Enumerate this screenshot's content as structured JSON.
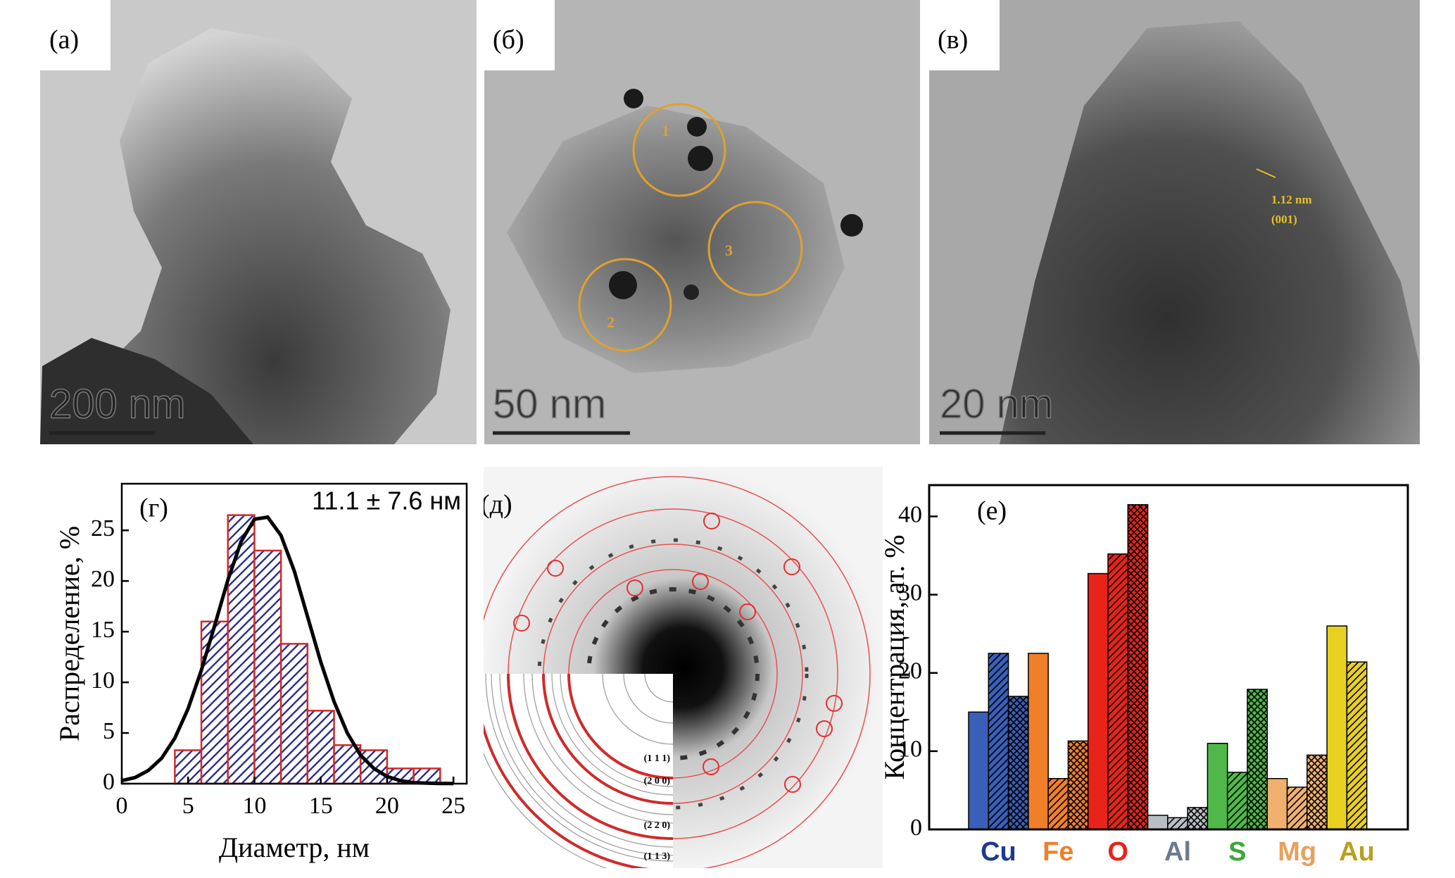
{
  "panels": [
    {
      "label": "(а)",
      "scale_bar": "200 nm"
    },
    {
      "label": "(б)",
      "scale_bar": "50 nm",
      "regions": [
        "1",
        "2",
        "3"
      ]
    },
    {
      "label": "(в)",
      "scale_bar": "20 nm",
      "annotations": [
        "1.12 nm",
        "(001)"
      ]
    },
    {
      "label": "(д)",
      "rings": [
        "(1 1 1)",
        "(2 0 0)",
        "(2 2 0)",
        "(1 1 3)"
      ]
    }
  ],
  "chart_data": [
    {
      "type": "histogram",
      "label": "(г)",
      "title": "11.1 ± 7.6 нм",
      "xlabel": "Диаметр, нм",
      "ylabel": "Распределение, %",
      "bins": [
        4,
        6,
        8,
        10,
        12,
        14,
        16,
        18,
        20,
        22,
        24
      ],
      "values": [
        3.3,
        16,
        26.5,
        23,
        13.8,
        7.2,
        3.8,
        3.3,
        1.5,
        1.5
      ],
      "color": "#2b2f8f",
      "edgecolor": "#d02a2a",
      "fit": {
        "color": "#000000",
        "x": [
          0,
          1,
          2,
          3,
          4,
          5,
          6,
          7,
          8,
          9,
          10,
          11,
          12,
          13,
          14,
          15,
          16,
          17,
          18,
          19,
          20,
          21,
          22,
          23,
          24,
          25
        ],
        "values": [
          0.3,
          0.6,
          1.3,
          2.5,
          4.5,
          7.4,
          11.2,
          15.6,
          20.1,
          23.9,
          26.1,
          26.3,
          24.5,
          21,
          16.5,
          12,
          8.1,
          5,
          2.8,
          1.5,
          0.7,
          0.3,
          0.1,
          0.05,
          0.02,
          0.01
        ]
      },
      "xlim": [
        0,
        26
      ],
      "ylim": [
        0,
        29.6
      ],
      "xticks": [
        0,
        5,
        10,
        15,
        20,
        25
      ],
      "yticks": [
        0,
        5,
        10,
        15,
        20,
        25
      ]
    },
    {
      "type": "bar",
      "label": "(е)",
      "ylabel": "Концентрация, ат. %",
      "categories": [
        "Cu",
        "Fe",
        "O",
        "Al",
        "S",
        "Mg",
        "Au"
      ],
      "colors": [
        "#3a5fb8",
        "#f07f2a",
        "#e8231a",
        "#b8bec4",
        "#4fb848",
        "#f0b070",
        "#e8d020"
      ],
      "label_colors": [
        "#1e3a8a",
        "#f07f2a",
        "#e8231a",
        "#6b7b8c",
        "#3aa83a",
        "#e8a060",
        "#b8a020"
      ],
      "series": [
        {
          "pattern": "solid",
          "values": [
            15,
            22.5,
            32.7,
            1.8,
            11,
            6.5,
            26
          ]
        },
        {
          "pattern": "hatch",
          "values": [
            22.5,
            6.5,
            35.2,
            1.5,
            7.3,
            5.4,
            21.4
          ]
        },
        {
          "pattern": "crosshatch",
          "values": [
            17,
            11.3,
            41.5,
            2.8,
            17.9,
            9.5,
            null
          ]
        }
      ],
      "ylim": [
        0,
        44
      ],
      "yticks": [
        0,
        10,
        20,
        30,
        40
      ]
    }
  ]
}
